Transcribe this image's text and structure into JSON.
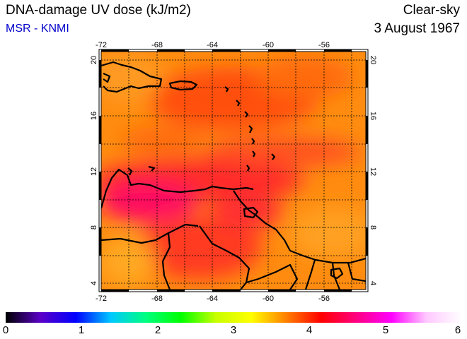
{
  "header": {
    "title": "DNA-damage UV dose (kJ/m2)",
    "source": "MSR - KNMI",
    "sky": "Clear-sky",
    "date": "3 August 1967"
  },
  "map": {
    "lon_range": [
      -72,
      -53
    ],
    "lat_range": [
      3.5,
      20.5
    ],
    "lon_ticks": [
      "-72",
      "-68",
      "-64",
      "-60",
      "-56"
    ],
    "lat_ticks": [
      "4",
      "8",
      "12",
      "16",
      "20"
    ],
    "gridlines": true
  },
  "colorbar": {
    "min": 0,
    "max": 6,
    "labels": [
      "0",
      "1",
      "2",
      "3",
      "4",
      "5",
      "6"
    ],
    "colors": [
      "#000000",
      "#5a00c8",
      "#0000ff",
      "#00c8ff",
      "#00ff80",
      "#00ff00",
      "#c8ff00",
      "#ffff00",
      "#ff8000",
      "#ff0000",
      "#ff0080",
      "#ff00ff",
      "#ffc8ff",
      "#ffffff"
    ]
  }
}
